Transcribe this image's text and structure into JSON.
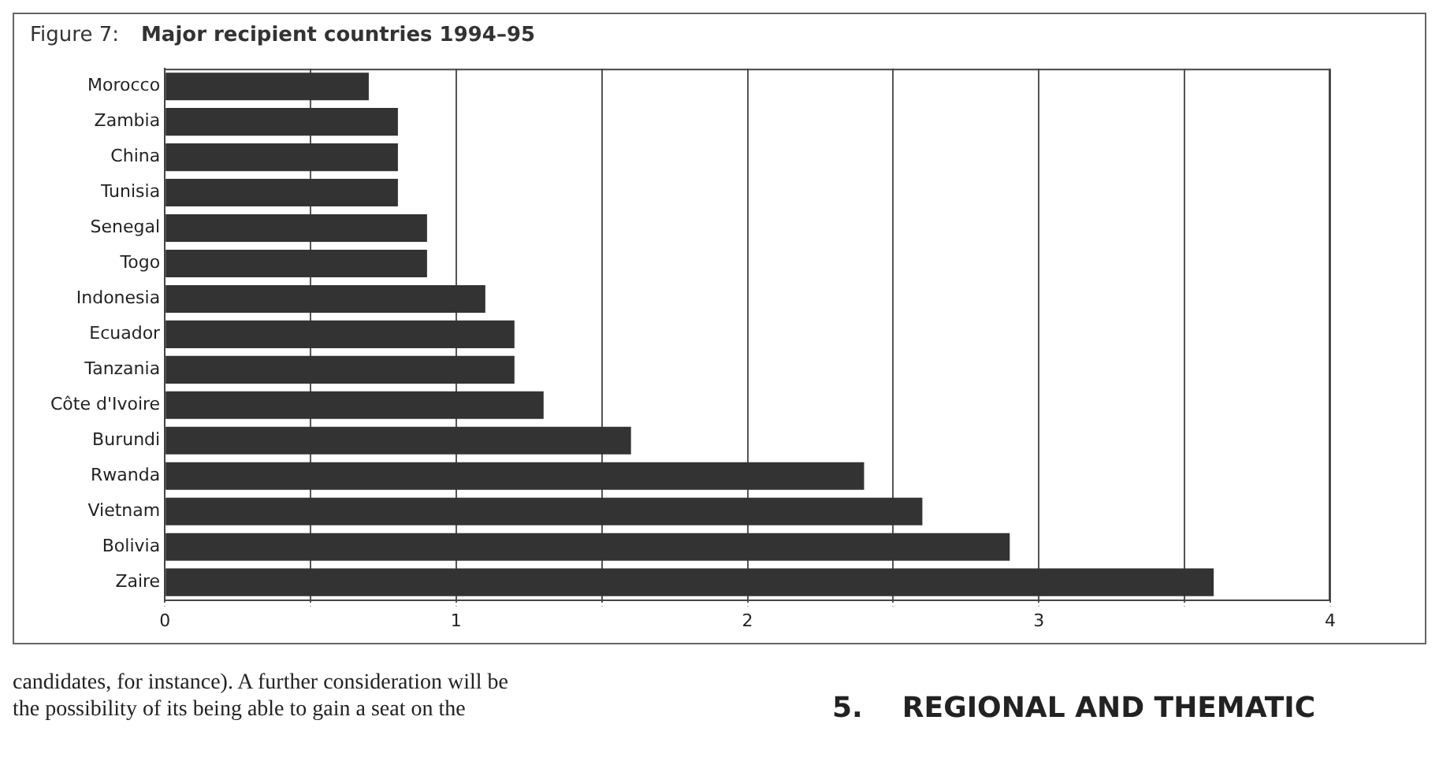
{
  "chart_data": {
    "type": "bar",
    "orientation": "horizontal",
    "title": "Major recipient countries 1994–95",
    "subtitle": "Figure 7:",
    "categories": [
      "Morocco",
      "Zambia",
      "China",
      "Tunisia",
      "Senegal",
      "Togo",
      "Indonesia",
      "Ecuador",
      "Tanzania",
      "Côte d'Ivoire",
      "Burundi",
      "Rwanda",
      "Vietnam",
      "Bolivia",
      "Zaire"
    ],
    "values": [
      0.7,
      0.8,
      0.8,
      0.8,
      0.9,
      0.9,
      1.1,
      1.2,
      1.2,
      1.3,
      1.6,
      2.4,
      2.6,
      2.9,
      3.6
    ],
    "color": "#333333",
    "xlim": [
      0,
      4
    ],
    "xticks": [
      0,
      {
        "value": 0.5,
        "label": null
      },
      1,
      {
        "value": 1.5,
        "label": null
      },
      2,
      {
        "value": 2.5,
        "label": null
      },
      3,
      {
        "value": 3.5,
        "label": null
      },
      4
    ],
    "grid": "x",
    "annotations": [
      "candidates, for instance). A further consideration will be",
      "the possibility of its being able to gain a seat on the",
      "5.    REGIONAL AND THEMATIC"
    ]
  }
}
